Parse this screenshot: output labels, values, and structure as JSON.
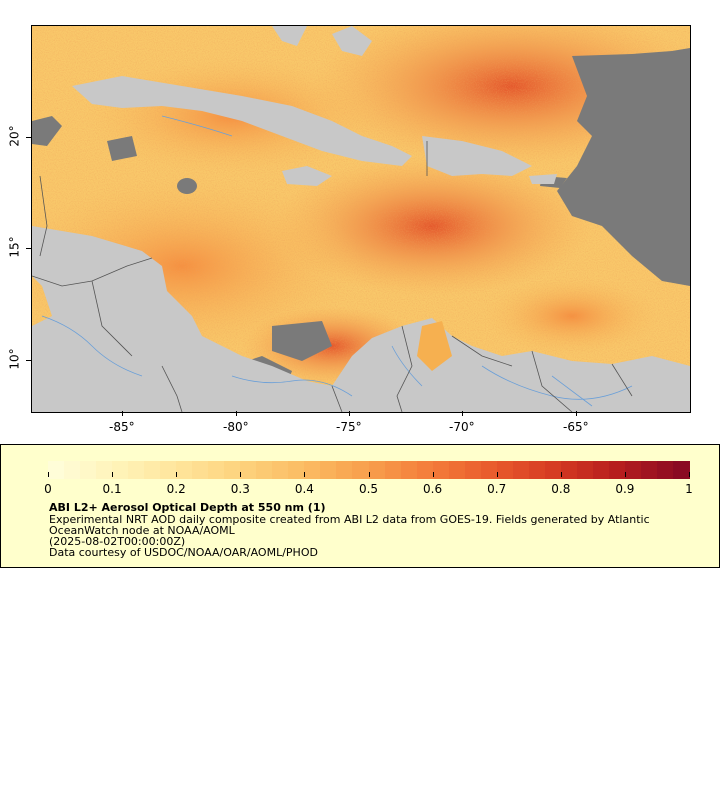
{
  "map": {
    "x_axis": {
      "ticks": [
        "-85°",
        "-80°",
        "-75°",
        "-70°",
        "-65°"
      ]
    },
    "y_axis": {
      "ticks": [
        "20°",
        "15°",
        "10°"
      ]
    },
    "colors": {
      "land": "#c8c8c8",
      "nodata": "#7a7a7a",
      "water_lines": "#6a9fd8",
      "borders": "#555555"
    }
  },
  "legend": {
    "title": "ABI L2+ Aerosol Optical Depth at 550 nm (1)",
    "line1": "Experimental NRT AOD daily composite created from ABI L2 data from GOES-19. Fields generated by Atlantic",
    "line2": "OceanWatch node at NOAA/AOML",
    "line3": "(2025-08-02T00:00:00Z)",
    "line4": "Data courtesy of USDOC/NOAA/OAR/AOML/PHOD",
    "colorbar_labels": [
      "0",
      "0.1",
      "0.2",
      "0.3",
      "0.4",
      "0.5",
      "0.6",
      "0.7",
      "0.8",
      "0.9",
      "1"
    ],
    "colorbar_colors": [
      "#fffdd8",
      "#fff3b8",
      "#ffe49a",
      "#fdd27c",
      "#fbbb62",
      "#f89e4c",
      "#f47c3a",
      "#e85a2c",
      "#d53a22",
      "#b51d1e",
      "#8a0a22"
    ]
  }
}
